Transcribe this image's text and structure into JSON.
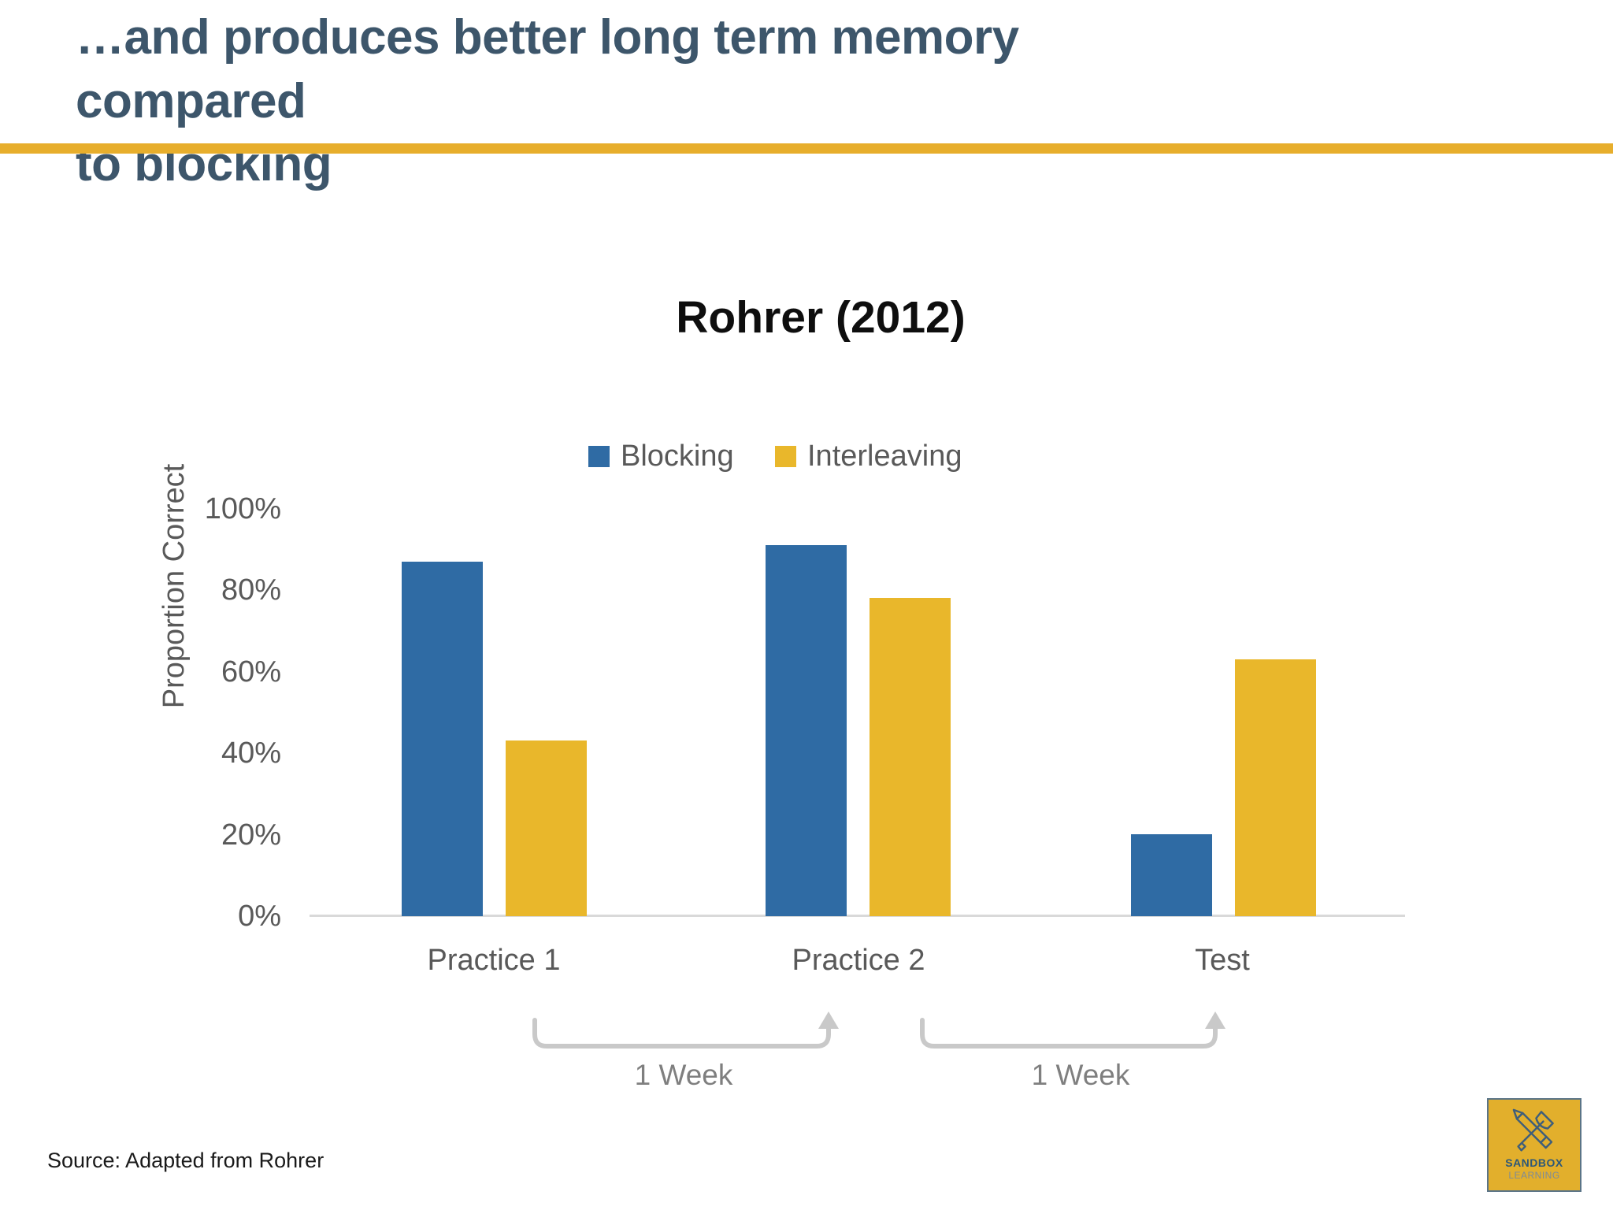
{
  "slide": {
    "heading_line1": "…and produces better long term memory compared",
    "heading_line2": "to blocking",
    "source": "Source: Adapted from Rohrer",
    "accent_color": "#E7AE2C"
  },
  "logo": {
    "line1": "SANDBOX",
    "line2": "LEARNING",
    "bg_color": "#E2AF2C",
    "icon": "pencil-and-shovel-crossed"
  },
  "chart_data": {
    "type": "bar",
    "title": "Rohrer (2012)",
    "xlabel": "",
    "ylabel": "Proportion Correct",
    "categories": [
      "Practice 1",
      "Practice 2",
      "Test"
    ],
    "series": [
      {
        "name": "Blocking",
        "color": "#2F6BA4",
        "values": [
          87,
          91,
          20
        ]
      },
      {
        "name": "Interleaving",
        "color": "#E9B72B",
        "values": [
          43,
          78,
          63
        ]
      }
    ],
    "ylim": [
      0,
      100
    ],
    "yticks": [
      {
        "label": "100%",
        "value": 100
      },
      {
        "label": "80%",
        "value": 80
      },
      {
        "label": "60%",
        "value": 60
      },
      {
        "label": "40%",
        "value": 40
      },
      {
        "label": "20%",
        "value": 20
      },
      {
        "label": "0%",
        "value": 0
      }
    ],
    "grid": false,
    "legend_position": "top",
    "annotations": [
      {
        "text": "1 Week",
        "between": [
          "Practice 1",
          "Practice 2"
        ]
      },
      {
        "text": "1 Week",
        "between": [
          "Practice 2",
          "Test"
        ]
      }
    ]
  }
}
